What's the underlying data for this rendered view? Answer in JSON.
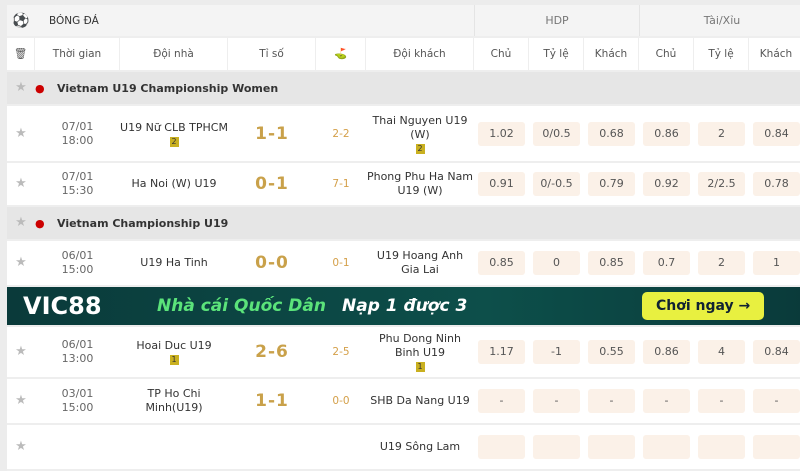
{
  "header": {
    "sport": "BÓNG ĐÁ",
    "hdp": "HDP",
    "taixiu": "Tài/Xỉu"
  },
  "columns": {
    "time": "Thời gian",
    "home": "Đội nhà",
    "score": "Tỉ số",
    "away": "Đội khách",
    "hdp": [
      "Chủ",
      "Tỷ lệ",
      "Khách"
    ],
    "tx": [
      "Chủ",
      "Tỷ lệ",
      "Khách"
    ]
  },
  "leagues": [
    {
      "name": "Vietnam U19 Championship Women",
      "matches": [
        {
          "date": "07/01",
          "time": "18:00",
          "home": "U19 Nữ CLB TPHCM",
          "home_badge": "2",
          "score": "1-1",
          "ht": "2-2",
          "away": "Thai Nguyen U19 (W)",
          "away_badge": "2",
          "odds": [
            "1.02",
            "0/0.5",
            "0.68",
            "0.86",
            "2",
            "0.84"
          ]
        },
        {
          "date": "07/01",
          "time": "15:30",
          "home": "Ha Noi (W) U19",
          "home_badge": "",
          "score": "0-1",
          "ht": "7-1",
          "away": "Phong Phu Ha Nam U19 (W)",
          "away_badge": "",
          "odds": [
            "0.91",
            "0/-0.5",
            "0.79",
            "0.92",
            "2/2.5",
            "0.78"
          ]
        }
      ]
    },
    {
      "name": "Vietnam Championship U19",
      "matches": [
        {
          "date": "06/01",
          "time": "15:00",
          "home": "U19 Ha Tinh",
          "home_badge": "",
          "score": "0-0",
          "ht": "0-1",
          "away": "U19 Hoang Anh Gia Lai",
          "away_badge": "",
          "odds": [
            "0.85",
            "0",
            "0.85",
            "0.7",
            "2",
            "1"
          ]
        },
        {
          "date": "06/01",
          "time": "13:00",
          "home": "Hoai Duc U19",
          "home_badge": "1",
          "score": "2-6",
          "ht": "2-5",
          "away": "Phu Dong Ninh Binh U19",
          "away_badge": "1",
          "odds": [
            "1.17",
            "-1",
            "0.55",
            "0.86",
            "4",
            "0.84"
          ]
        },
        {
          "date": "03/01",
          "time": "15:00",
          "home": "TP Ho Chi Minh(U19)",
          "home_badge": "",
          "score": "1-1",
          "ht": "0-0",
          "away": "SHB Da Nang U19",
          "away_badge": "",
          "odds": [
            "-",
            "-",
            "-",
            "-",
            "-",
            "-"
          ]
        },
        {
          "date": "",
          "time": "",
          "home": "",
          "home_badge": "",
          "score": "",
          "ht": "",
          "away": "U19 Sông Lam",
          "away_badge": "",
          "odds": [
            "",
            "",
            "",
            "",
            "",
            ""
          ]
        }
      ]
    }
  ],
  "banner": {
    "brand": "VIC88",
    "slogan": "Nhà cái Quốc Dân",
    "promo": "Nạp 1 được 3",
    "cta": "Chơi ngay →"
  }
}
